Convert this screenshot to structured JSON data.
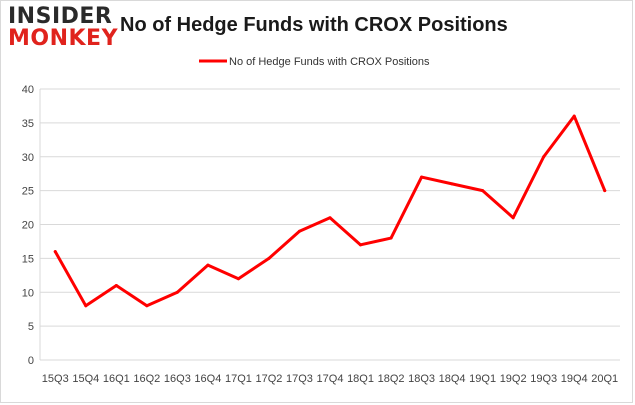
{
  "logo": {
    "line1": "INSIDER",
    "line2": "MONKEY"
  },
  "chart_data": {
    "type": "line",
    "title": "No of Hedge Funds with CROX Positions",
    "xlabel": "",
    "ylabel": "",
    "categories": [
      "15Q3",
      "15Q4",
      "16Q1",
      "16Q2",
      "16Q3",
      "16Q4",
      "17Q1",
      "17Q2",
      "17Q3",
      "17Q4",
      "18Q1",
      "18Q2",
      "18Q3",
      "18Q4",
      "19Q1",
      "19Q2",
      "19Q3",
      "19Q4",
      "20Q1"
    ],
    "series": [
      {
        "name": "No of Hedge Funds with CROX Positions",
        "values": [
          16,
          8,
          11,
          8,
          10,
          14,
          12,
          15,
          19,
          21,
          17,
          18,
          27,
          26,
          25,
          21,
          30,
          36,
          25
        ]
      }
    ],
    "ylim": [
      0,
      40
    ],
    "yticks": [
      0,
      5,
      10,
      15,
      20,
      25,
      30,
      35,
      40
    ],
    "grid": true,
    "legend": "top-center",
    "line_color": "#ff0000",
    "grid_color": "#d9d9d9"
  }
}
